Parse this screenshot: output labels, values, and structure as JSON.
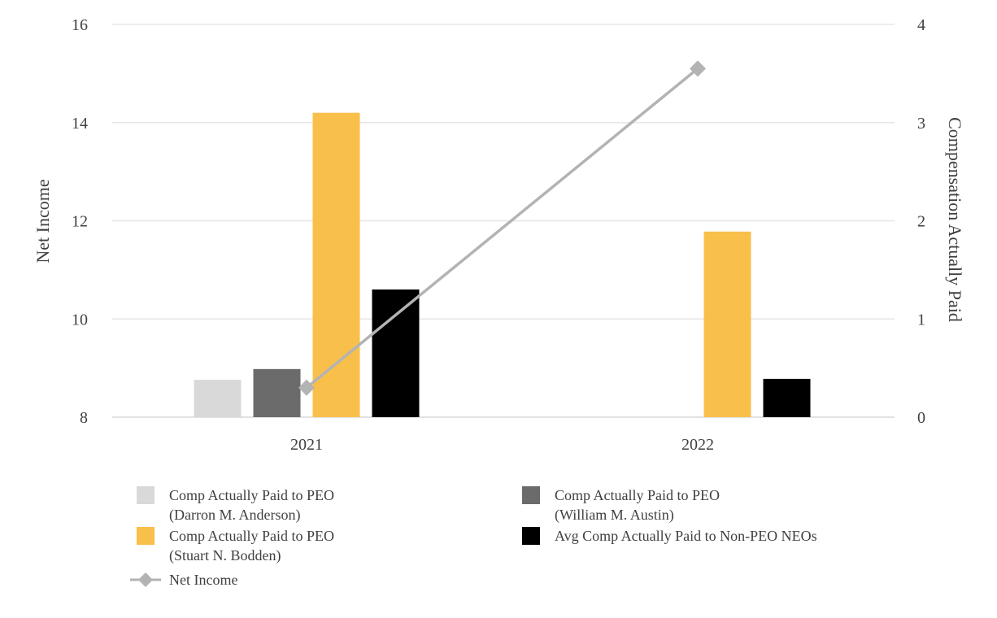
{
  "chart_data": {
    "type": "bar",
    "categories": [
      "2021",
      "2022"
    ],
    "left_axis": {
      "label": "Net Income",
      "ylim": [
        8,
        16
      ],
      "ticks": [
        "8",
        "10",
        "12",
        "14",
        "16"
      ],
      "tick_values": [
        8,
        10,
        12,
        14,
        16
      ]
    },
    "right_axis": {
      "label": "Compensation Actually Paid",
      "ylim": [
        0,
        4
      ],
      "ticks": [
        "0",
        "1",
        "2",
        "3",
        "4"
      ],
      "tick_values": [
        0,
        1,
        2,
        3,
        4
      ]
    },
    "series": [
      {
        "name": "Comp Actually Paid to PEO (Darron M. Anderson)",
        "legend_lines": [
          "Comp Actually Paid to PEO",
          "(Darron M. Anderson)"
        ],
        "type": "bar",
        "axis": "right",
        "color": "#d9d9d9",
        "values": [
          0.38,
          null
        ]
      },
      {
        "name": "Comp Actually Paid to PEO (William M. Austin)",
        "legend_lines": [
          "Comp Actually Paid to PEO",
          "(William M. Austin)"
        ],
        "type": "bar",
        "axis": "right",
        "color": "#6b6b6b",
        "values": [
          0.49,
          null
        ]
      },
      {
        "name": "Comp Actually Paid to PEO (Stuart N. Bodden)",
        "legend_lines": [
          "Comp Actually Paid to PEO",
          "(Stuart N. Bodden)"
        ],
        "type": "bar",
        "axis": "right",
        "color": "#f9bf4b",
        "values": [
          3.1,
          1.89
        ]
      },
      {
        "name": "Avg Comp Actually Paid to Non-PEO NEOs",
        "legend_lines": [
          "Avg Comp Actually Paid to Non-PEO NEOs"
        ],
        "type": "bar",
        "axis": "right",
        "color": "#000000",
        "values": [
          1.3,
          0.39
        ]
      },
      {
        "name": "Net Income",
        "legend_lines": [
          "Net Income"
        ],
        "type": "line",
        "axis": "left",
        "color": "#b3b3b3",
        "marker": "diamond",
        "values": [
          8.6,
          15.1
        ]
      }
    ],
    "grid": true,
    "legend_position": "bottom"
  }
}
